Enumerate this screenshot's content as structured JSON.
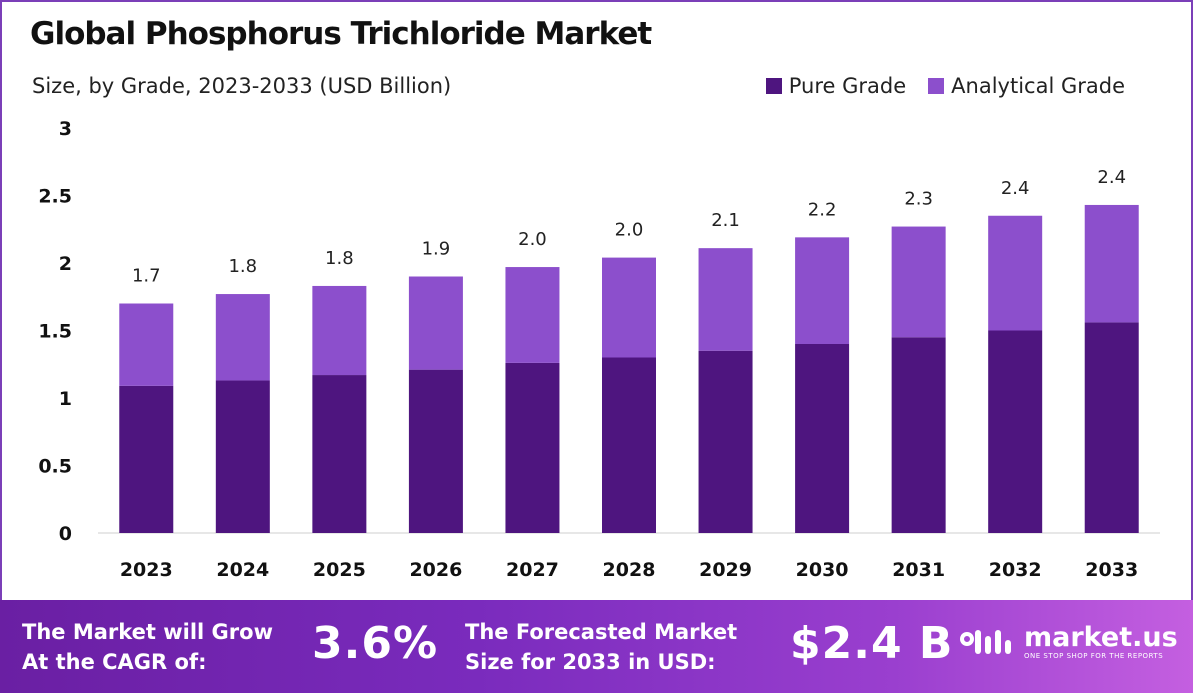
{
  "title": "Global Phosphorus Trichloride Market",
  "subtitle": "Size, by Grade, 2023-2033 (USD Billion)",
  "colors": {
    "pure": "#4e157f",
    "analytical": "#8c4fcc",
    "frame": "#7b3fb8"
  },
  "chart_data": {
    "type": "bar",
    "stacked": true,
    "title": "Global Phosphorus Trichloride Market",
    "subtitle": "Size, by Grade, 2023-2033 (USD Billion)",
    "categories": [
      "2023",
      "2024",
      "2025",
      "2026",
      "2027",
      "2028",
      "2029",
      "2030",
      "2031",
      "2032",
      "2033"
    ],
    "series": [
      {
        "name": "Pure Grade",
        "color": "#4e157f",
        "values": [
          1.09,
          1.13,
          1.17,
          1.21,
          1.26,
          1.3,
          1.35,
          1.4,
          1.45,
          1.5,
          1.56
        ]
      },
      {
        "name": "Analytical Grade",
        "color": "#8c4fcc",
        "values": [
          0.61,
          0.64,
          0.66,
          0.69,
          0.71,
          0.74,
          0.76,
          0.79,
          0.82,
          0.85,
          0.87
        ]
      }
    ],
    "totals_labels": [
      "1.7",
      "1.8",
      "1.8",
      "1.9",
      "2.0",
      "2.0",
      "2.1",
      "2.2",
      "2.3",
      "2.4",
      "2.4"
    ],
    "yticks": [
      "0",
      "0.5",
      "1",
      "1.5",
      "2",
      "2.5",
      "3"
    ],
    "ylim": [
      0,
      3
    ],
    "xlabel": "",
    "ylabel": "",
    "legend": "top-right"
  },
  "footer": {
    "cagr_text_line1": "The Market will Grow",
    "cagr_text_line2": "At the CAGR of:",
    "cagr_value": "3.6%",
    "forecast_text_line1": "The Forecasted Market",
    "forecast_text_line2": "Size for 2033 in USD:",
    "forecast_value": "$2.4 B",
    "brand_name": "market.us",
    "brand_tagline": "ONE STOP SHOP FOR THE REPORTS"
  }
}
